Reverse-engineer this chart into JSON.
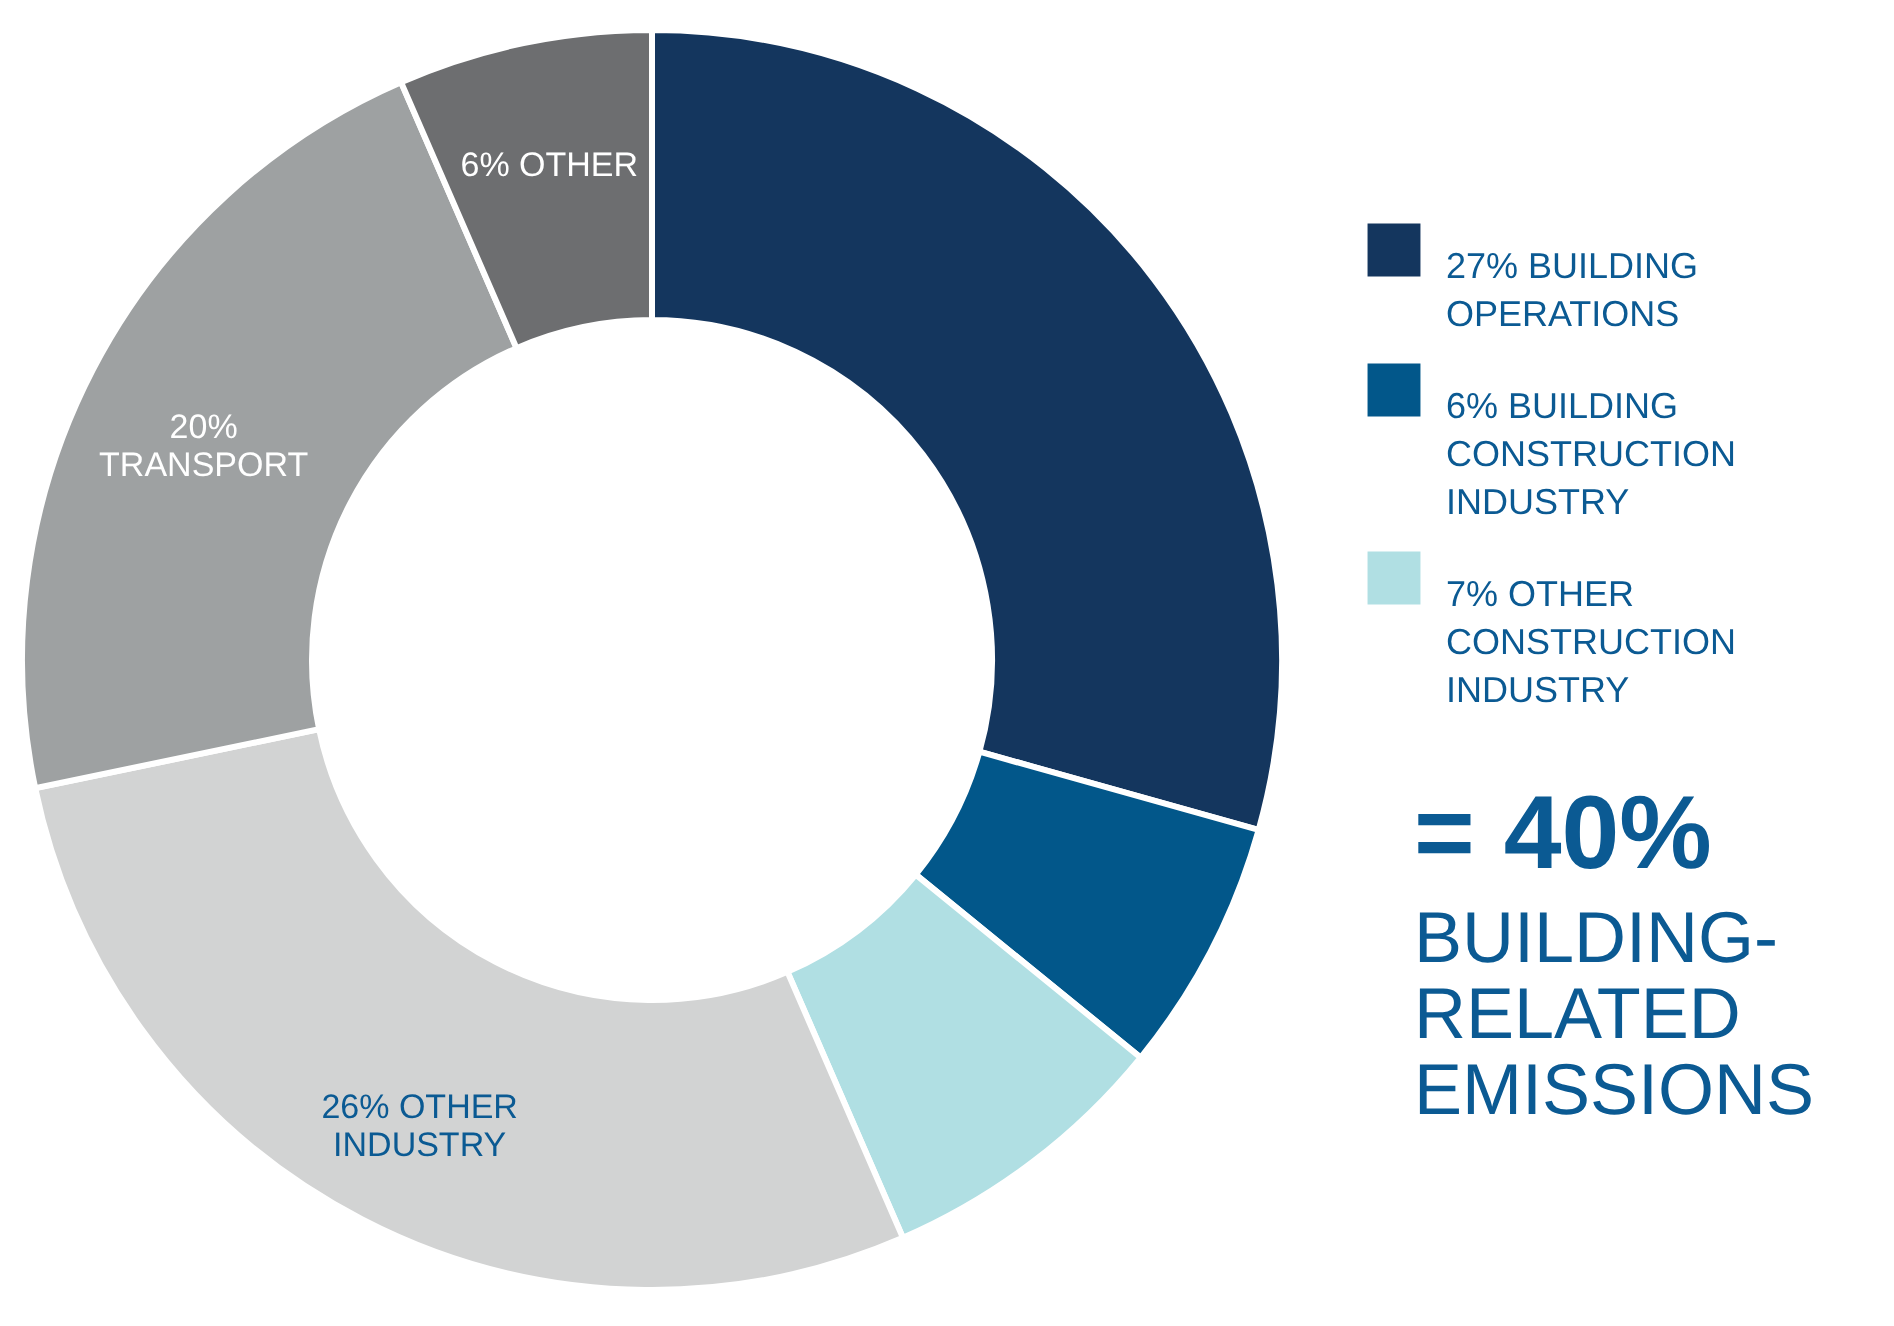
{
  "chart_data": {
    "type": "donut",
    "categories": [
      "27% BUILDING OPERATIONS",
      "6% BUILDING CONSTRUCTION INDUSTRY",
      "7% OTHER CONSTRUCTION INDUSTRY",
      null,
      null,
      null
    ],
    "values": [
      27,
      6,
      7,
      26,
      20,
      6
    ],
    "colors": [
      "#14365e",
      "#02578a",
      "#b0dfe3",
      "#d2d3d3",
      "#9ea1a2",
      "#6d6e70"
    ],
    "value_labels": [
      null,
      null,
      null,
      "26% OTHER INDUSTRY",
      "20% TRANSPORT",
      "6% OTHER"
    ],
    "legend": "right",
    "annotations": [
      "= 40%",
      "BUILDING-RELATED EMISSIONS"
    ]
  }
}
